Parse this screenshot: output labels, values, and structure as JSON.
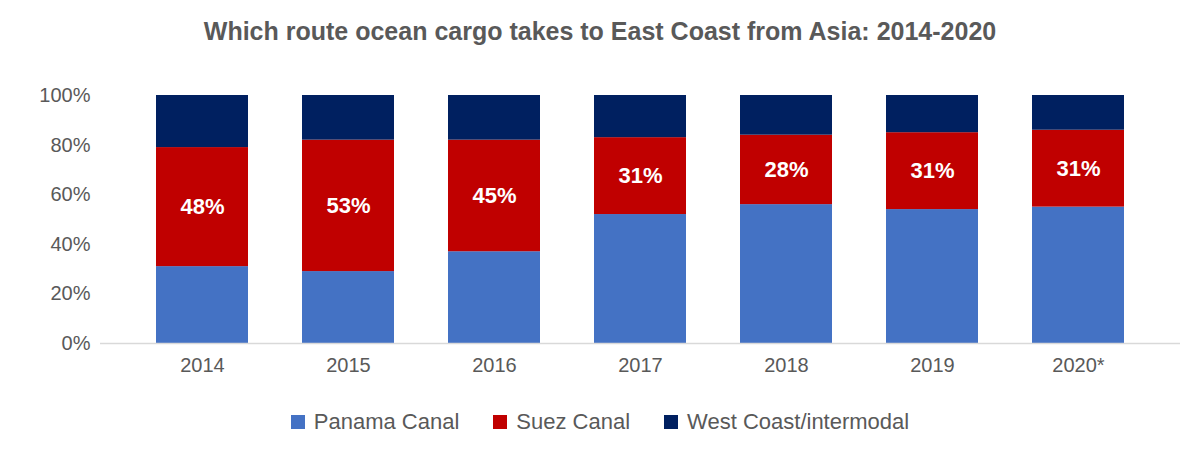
{
  "chart_data": {
    "type": "bar",
    "title": "Which route ocean cargo takes to East Coast from Asia: 2014-2020",
    "categories": [
      "2014",
      "2015",
      "2016",
      "2017",
      "2018",
      "2019",
      "2020*"
    ],
    "series": [
      {
        "name": "Panama Canal",
        "color": "#4472c4",
        "values": [
          31,
          29,
          37,
          52,
          56,
          54,
          55
        ]
      },
      {
        "name": "Suez Canal",
        "color": "#c00000",
        "values": [
          48,
          53,
          45,
          31,
          28,
          31,
          31
        ],
        "data_labels": true,
        "value_labels": [
          "48%",
          "53%",
          "45%",
          "31%",
          "28%",
          "31%",
          "31%"
        ]
      },
      {
        "name": "West Coast/intermodal",
        "color": "#002060",
        "values": [
          21,
          18,
          18,
          17,
          16,
          15,
          14
        ]
      }
    ],
    "stacked": true,
    "ylim": [
      0,
      100
    ],
    "yticks": [
      {
        "value": 0,
        "label": "0%"
      },
      {
        "value": 20,
        "label": "20%"
      },
      {
        "value": 40,
        "label": "40%"
      },
      {
        "value": 60,
        "label": "60%"
      },
      {
        "value": 80,
        "label": "80%"
      },
      {
        "value": 100,
        "label": "100%"
      }
    ],
    "grid": false,
    "legend": "bottom"
  }
}
